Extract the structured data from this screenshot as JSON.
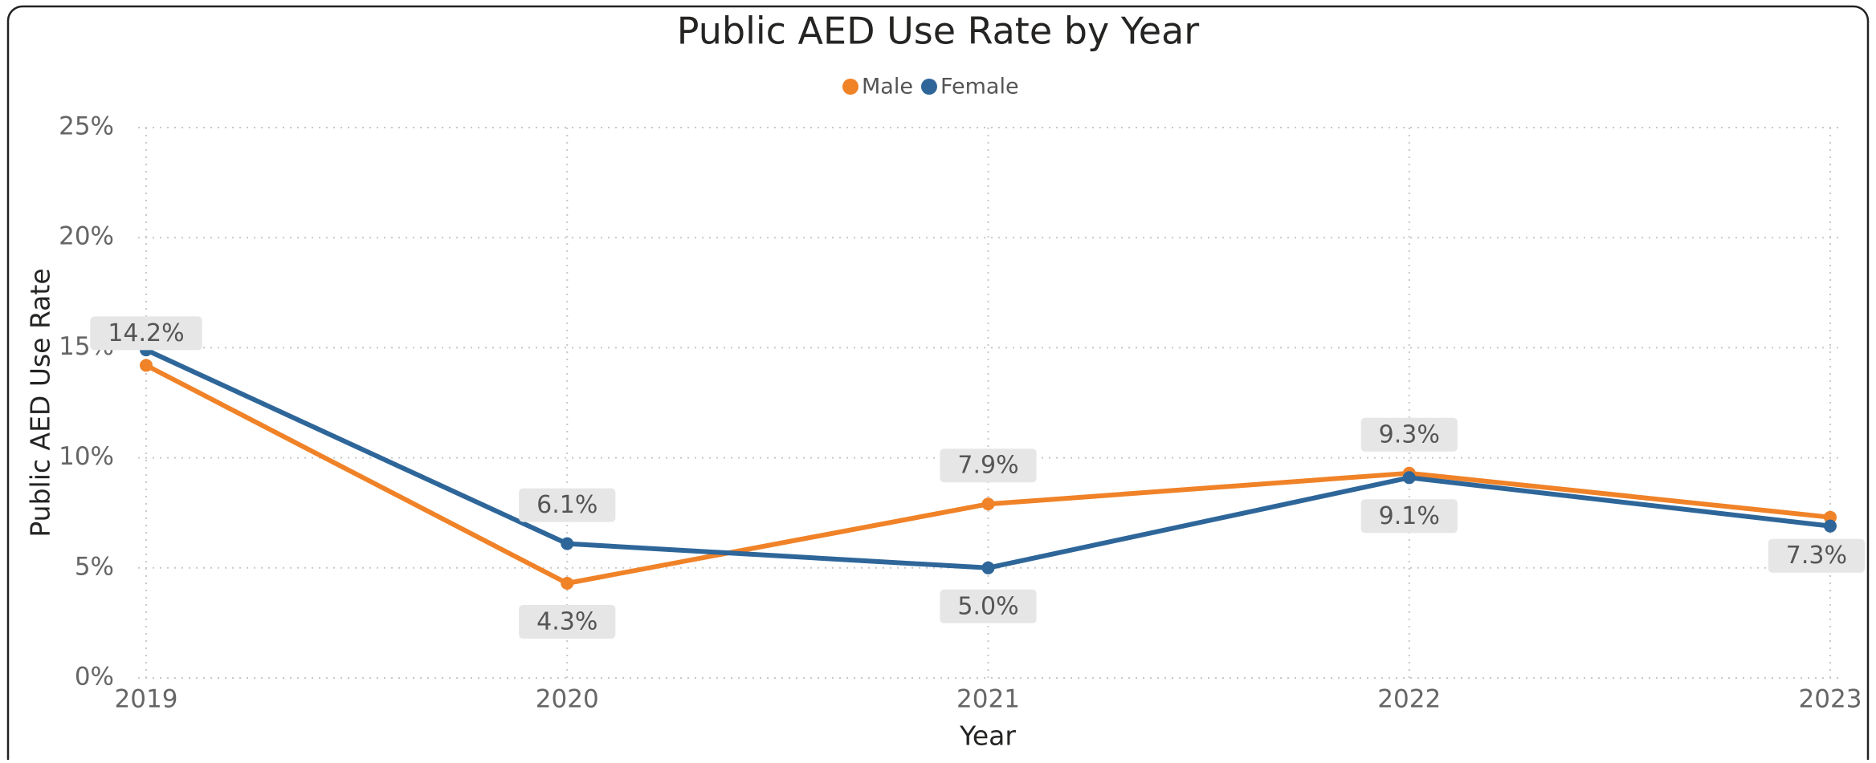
{
  "chart_data": {
    "type": "line",
    "title": "Public AED Use Rate by Year",
    "x_label": "Year",
    "y_label": "Public AED Use Rate",
    "categories": [
      "2019",
      "2020",
      "2021",
      "2022",
      "2023"
    ],
    "series": [
      {
        "name": "Male",
        "color": "#f08228",
        "values": [
          14.2,
          4.3,
          7.9,
          9.3,
          7.3
        ],
        "value_labels": [
          "14.2%",
          "4.3%",
          "7.9%",
          "9.3%",
          "7.3%"
        ]
      },
      {
        "name": "Female",
        "color": "#2e6699",
        "values": [
          14.9,
          6.1,
          5.0,
          9.1,
          6.9
        ],
        "value_labels": [
          null,
          "6.1%",
          "5.0%",
          "9.1%",
          null
        ]
      }
    ],
    "ylim": [
      0,
      25
    ],
    "yticks": [
      {
        "value": 0,
        "label": "0%"
      },
      {
        "value": 5,
        "label": "5%"
      },
      {
        "value": 10,
        "label": "10%"
      },
      {
        "value": 15,
        "label": "15%"
      },
      {
        "value": 20,
        "label": "20%"
      },
      {
        "value": 25,
        "label": "25%"
      }
    ],
    "grid": true,
    "legend": "top"
  }
}
